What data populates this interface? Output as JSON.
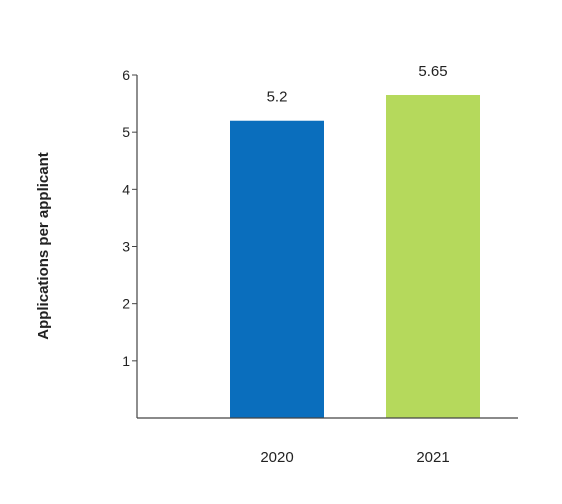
{
  "chart_data": {
    "type": "bar",
    "title": "",
    "xlabel": "",
    "ylabel": "Applications per applicant",
    "categories": [
      "2020",
      "2021"
    ],
    "values": [
      5.2,
      5.65
    ],
    "data_labels": [
      "5.2",
      "5.65"
    ],
    "bar_colors": [
      "#0a6ebd",
      "#b5d95c"
    ],
    "ylim": [
      0,
      6
    ],
    "yticks": [
      1,
      2,
      3,
      4,
      5,
      6
    ],
    "grid": false,
    "legend": "none"
  }
}
